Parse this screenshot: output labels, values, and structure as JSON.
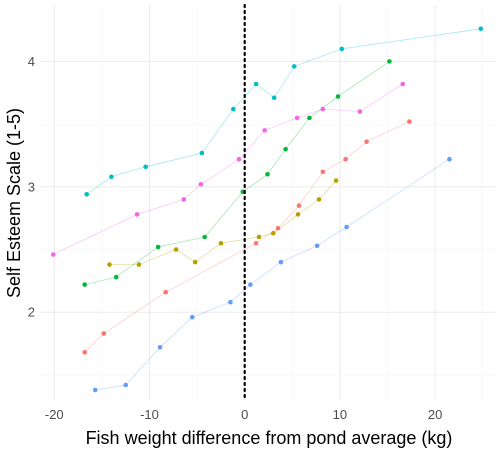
{
  "chart_data": {
    "type": "scatter",
    "xlabel": "Fish weight difference from pond average (kg)",
    "ylabel": "Self Esteem Scale (1-5)",
    "xlim": [
      -21.5,
      26.5
    ],
    "ylim": [
      1.3,
      4.45
    ],
    "x_ticks": [
      -20,
      -10,
      0,
      10,
      20
    ],
    "x_tick_labels": [
      "-20",
      "-10",
      "0",
      "10",
      "20"
    ],
    "y_ticks": [
      2,
      3,
      4
    ],
    "y_tick_labels": [
      "2",
      "3",
      "4"
    ],
    "grid": true,
    "legend": "none",
    "reference_line": {
      "x": 0,
      "style": "dotted"
    },
    "series": [
      {
        "color": "#F8766D",
        "points": [
          [
            -16.8,
            1.68
          ],
          [
            -14.8,
            1.83
          ],
          [
            -8.3,
            2.16
          ],
          [
            1.2,
            2.55
          ],
          [
            3.5,
            2.67
          ],
          [
            5.7,
            2.85
          ],
          [
            8.2,
            3.12
          ],
          [
            10.6,
            3.22
          ],
          [
            12.8,
            3.36
          ],
          [
            17.3,
            3.52
          ]
        ]
      },
      {
        "color": "#B79F00",
        "points": [
          [
            -14.2,
            2.38
          ],
          [
            -11.1,
            2.38
          ],
          [
            -7.2,
            2.5
          ],
          [
            -5.2,
            2.4
          ],
          [
            -2.5,
            2.55
          ],
          [
            1.5,
            2.6
          ],
          [
            3.0,
            2.63
          ],
          [
            5.6,
            2.78
          ],
          [
            7.8,
            2.9
          ],
          [
            9.6,
            3.05
          ]
        ]
      },
      {
        "color": "#00BA38",
        "points": [
          [
            -16.8,
            2.22
          ],
          [
            -13.5,
            2.28
          ],
          [
            -9.1,
            2.52
          ],
          [
            -4.2,
            2.6
          ],
          [
            -0.2,
            2.96
          ],
          [
            2.4,
            3.1
          ],
          [
            4.3,
            3.3
          ],
          [
            6.8,
            3.55
          ],
          [
            9.8,
            3.72
          ],
          [
            15.2,
            4.0
          ]
        ]
      },
      {
        "color": "#00BFC4",
        "points": [
          [
            -16.6,
            2.94
          ],
          [
            -14.0,
            3.08
          ],
          [
            -10.4,
            3.16
          ],
          [
            -4.5,
            3.27
          ],
          [
            -1.2,
            3.62
          ],
          [
            1.2,
            3.82
          ],
          [
            3.1,
            3.71
          ],
          [
            5.2,
            3.96
          ],
          [
            10.2,
            4.1
          ],
          [
            24.8,
            4.26
          ]
        ]
      },
      {
        "color": "#619CFF",
        "points": [
          [
            -15.7,
            1.38
          ],
          [
            -12.5,
            1.42
          ],
          [
            -8.9,
            1.72
          ],
          [
            -5.5,
            1.96
          ],
          [
            -1.5,
            2.08
          ],
          [
            0.6,
            2.22
          ],
          [
            3.8,
            2.4
          ],
          [
            7.6,
            2.53
          ],
          [
            10.7,
            2.68
          ],
          [
            21.5,
            3.22
          ]
        ]
      },
      {
        "color": "#F564E3",
        "points": [
          [
            -20.1,
            2.46
          ],
          [
            -11.3,
            2.78
          ],
          [
            -6.4,
            2.9
          ],
          [
            -4.6,
            3.02
          ],
          [
            -0.6,
            3.22
          ],
          [
            2.1,
            3.45
          ],
          [
            5.5,
            3.55
          ],
          [
            8.2,
            3.62
          ],
          [
            12.1,
            3.6
          ],
          [
            16.6,
            3.82
          ]
        ]
      }
    ]
  }
}
